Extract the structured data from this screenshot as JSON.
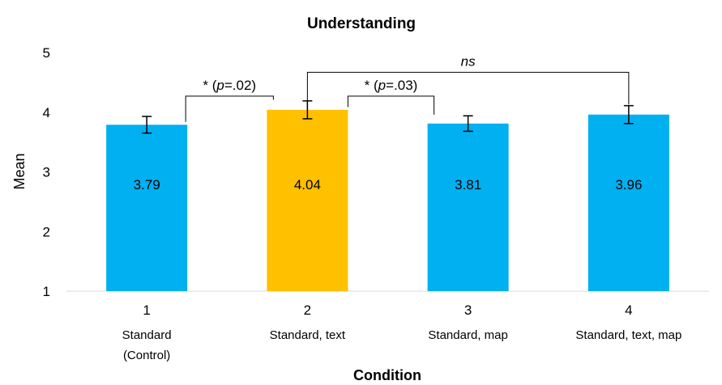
{
  "chart_data": {
    "type": "bar",
    "title": "Understanding",
    "xlabel": "Condition",
    "ylabel": "Mean",
    "ylim": [
      1,
      5
    ],
    "yticks": [
      "1",
      "2",
      "3",
      "4",
      "5"
    ],
    "grid": false,
    "categories": [
      {
        "number": "1",
        "name_lines": [
          "Standard",
          "(Control)"
        ]
      },
      {
        "number": "2",
        "name_lines": [
          "Standard, text"
        ]
      },
      {
        "number": "3",
        "name_lines": [
          "Standard, map"
        ]
      },
      {
        "number": "4",
        "name_lines": [
          "Standard, text, map"
        ]
      }
    ],
    "values": [
      3.79,
      4.04,
      3.81,
      3.96
    ],
    "value_labels": [
      "3.79",
      "4.04",
      "3.81",
      "3.96"
    ],
    "error": [
      0.14,
      0.15,
      0.13,
      0.15
    ],
    "colors": [
      "#00b0f0",
      "#ffc000",
      "#00b0f0",
      "#00b0f0"
    ],
    "comparisons": [
      {
        "from": 0,
        "to": 1,
        "prefix": "* (",
        "p_italic": "p",
        "suffix": "=.02)",
        "level": 4.27
      },
      {
        "from": 1,
        "to": 2,
        "prefix": "* (",
        "p_italic": "p",
        "suffix": "=.03)",
        "level": 4.27
      },
      {
        "from": 1,
        "to": 3,
        "prefix": "",
        "p_italic": "ns",
        "suffix": "",
        "level": 4.67
      }
    ]
  }
}
